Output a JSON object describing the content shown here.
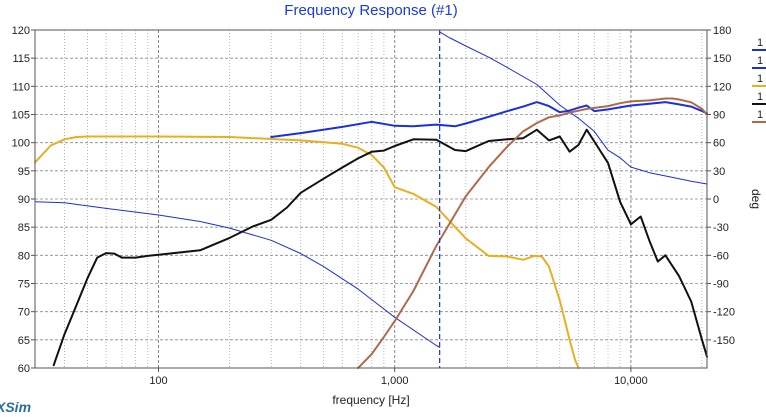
{
  "chart_data": {
    "type": "line",
    "title": "Frequency Response (#1)",
    "xlabel": "frequency [Hz]",
    "ylabel": "",
    "y2label": "deg",
    "x_scale": "log",
    "xlim": [
      30,
      21000
    ],
    "ylim": [
      60,
      120
    ],
    "y2lim": [
      -180,
      180
    ],
    "x_ticks": [
      100,
      1000,
      10000
    ],
    "x_tick_labels": [
      "100",
      "1,000",
      "10,000"
    ],
    "y_ticks": [
      60,
      65,
      70,
      75,
      80,
      85,
      90,
      95,
      100,
      105,
      110,
      115,
      120
    ],
    "y_tick_labels": [
      "60",
      "65",
      "70",
      "75",
      "80",
      "85",
      "90",
      "95",
      "100",
      "105",
      "110",
      "115",
      "120"
    ],
    "y2_ticks": [
      -150,
      -120,
      -90,
      -60,
      -30,
      0,
      30,
      60,
      90,
      120,
      150,
      180
    ],
    "y2_tick_labels": [
      "-150",
      "-120",
      "-90",
      "-60",
      "-30",
      "0",
      "30",
      "60",
      "90",
      "120",
      "150",
      "180"
    ],
    "grid": true,
    "marker_x": 1550,
    "legend_placement": "right, partially cut off",
    "series": [
      {
        "color": "#1a2fe0",
        "width": 2,
        "axis": "left",
        "x": [
          300,
          400,
          600,
          800,
          1000,
          1200,
          1500,
          1800,
          2000,
          2500,
          3000,
          3500,
          4000,
          4500,
          5000,
          5500,
          6000,
          6500,
          7000,
          8000,
          10000,
          12000,
          14000,
          16000,
          18000,
          20000,
          21000
        ],
        "y": [
          101,
          101.7,
          102.8,
          103.7,
          103,
          102.9,
          103.2,
          102.9,
          103.4,
          104.6,
          105.6,
          106.4,
          107.2,
          106.5,
          105.4,
          105.7,
          106.2,
          106.6,
          105.6,
          105.9,
          106.6,
          106.9,
          107.2,
          106.8,
          106.4,
          105.6,
          105.2
        ]
      },
      {
        "color": "#1a2fe0",
        "width": 1,
        "axis": "right",
        "x": [
          30,
          40,
          60,
          100,
          150,
          200,
          300,
          400,
          500,
          700,
          1000,
          1500,
          1550
        ],
        "y": [
          -3,
          -4,
          -10,
          -17,
          -24,
          -31,
          -44,
          -58,
          -72,
          -96,
          -126,
          -156,
          -158
        ]
      },
      {
        "color": "#1a2fe0",
        "width": 1,
        "axis": "right",
        "x": [
          1550,
          1700,
          2000,
          2500,
          3000,
          4000,
          5000,
          6000,
          7000,
          8000,
          9000,
          10000,
          12000,
          15000,
          18000,
          21000
        ],
        "y": [
          178,
          172,
          163,
          151,
          140,
          122,
          100,
          86,
          72,
          52,
          44,
          34,
          28,
          23,
          19,
          16
        ]
      },
      {
        "color": "#e8b020",
        "width": 2,
        "axis": "left",
        "x": [
          30,
          35,
          40,
          45,
          50,
          60,
          100,
          200,
          400,
          600,
          700,
          800,
          900,
          1000,
          1200,
          1500,
          2000,
          2500,
          3000,
          3500,
          3900,
          4200,
          4500,
          5000,
          5500,
          5800,
          6000
        ],
        "y": [
          96.5,
          99.5,
          100.6,
          101,
          101.1,
          101.1,
          101.1,
          101,
          100.4,
          99.8,
          99.1,
          97.8,
          95.6,
          92.1,
          90.9,
          88.6,
          83,
          79.9,
          79.8,
          79.2,
          79.9,
          79.8,
          78,
          72,
          65,
          61.5,
          60
        ]
      },
      {
        "color": "#111111",
        "width": 2,
        "axis": "left",
        "x": [
          36,
          40,
          45,
          50,
          55,
          60,
          65,
          70,
          80,
          90,
          100,
          150,
          200,
          250,
          300,
          350,
          400,
          500,
          600,
          700,
          800,
          900,
          1000,
          1200,
          1500,
          1800,
          2000,
          2500,
          3000,
          3500,
          4000,
          4500,
          5000,
          5500,
          6000,
          6500,
          7000,
          8000,
          9000,
          10000,
          11000,
          12000,
          13000,
          14000,
          16000,
          18000,
          20000,
          21000
        ],
        "y": [
          60.5,
          66,
          71.2,
          75.9,
          79.6,
          80.4,
          80.3,
          79.6,
          79.6,
          79.9,
          80.1,
          80.9,
          83.1,
          85.1,
          86.3,
          88.5,
          91.1,
          93.6,
          95.6,
          97.2,
          98.4,
          98.6,
          99.4,
          100.6,
          100.5,
          98.7,
          98.5,
          100.3,
          100.6,
          100.8,
          102.3,
          100.4,
          101.1,
          98.4,
          99.6,
          102.3,
          100.2,
          96.4,
          89.5,
          85.5,
          86.9,
          82.5,
          78.9,
          80,
          76.3,
          71.8,
          65,
          62
        ]
      },
      {
        "color": "#b06a4a",
        "width": 2,
        "axis": "right",
        "x": [
          700,
          800,
          900,
          1000,
          1200,
          1500,
          2000,
          2500,
          3000,
          3500,
          4000,
          4500,
          5000,
          5500,
          6000,
          6500,
          7000,
          8000,
          9000,
          10000,
          12000,
          14000,
          15000,
          16000,
          18000,
          20000,
          21000
        ],
        "y": [
          -180,
          -165,
          -147,
          -130,
          -98,
          -50,
          3,
          34,
          56,
          72,
          81,
          87,
          89,
          92,
          94,
          96,
          97,
          99,
          102,
          104,
          105,
          107,
          107,
          106,
          103,
          96,
          90
        ]
      }
    ]
  },
  "legend": {
    "entries": [
      {
        "label": "1",
        "color": "#1a2fe0"
      },
      {
        "label": "1",
        "color": "#1a2fe0"
      },
      {
        "label": "1",
        "color": "#e8b020"
      },
      {
        "label": "1",
        "color": "#111111"
      },
      {
        "label": "1",
        "color": "#b06a4a"
      }
    ]
  },
  "brand_text": "XSim"
}
